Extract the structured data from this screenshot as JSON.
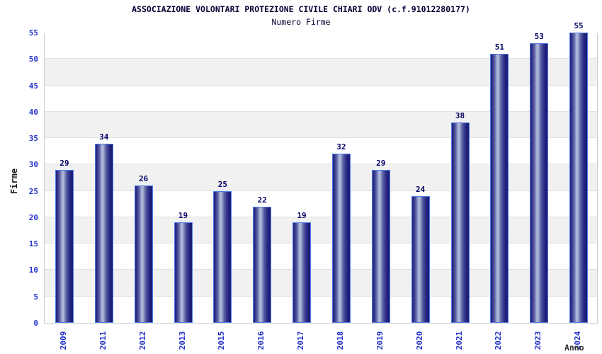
{
  "chart_data": {
    "type": "bar",
    "title": "ASSOCIAZIONE VOLONTARI PROTEZIONE CIVILE CHIARI ODV (c.f.91012280177)",
    "subtitle": "Numero Firme",
    "xlabel": "Anno",
    "ylabel": "Firme",
    "categories": [
      "2009",
      "2011",
      "2012",
      "2013",
      "2015",
      "2016",
      "2017",
      "2018",
      "2019",
      "2020",
      "2021",
      "2022",
      "2023",
      "2024"
    ],
    "values": [
      29,
      34,
      26,
      19,
      25,
      22,
      19,
      32,
      29,
      24,
      38,
      51,
      53,
      55
    ],
    "ylim": [
      0,
      55
    ],
    "ytick_step": 5,
    "grid": "alternating-horizontal-bands",
    "legend": "none"
  },
  "colors": {
    "bar_gradient_dark": "#1b1b72",
    "bar_gradient_highlight": "#b9c1df",
    "bar_border": "#4f7be8",
    "tick_label_blue": "#2333cc",
    "value_label_navy": "#000066",
    "title_navy": "#000033",
    "axis_label_dark": "#1a1a1a",
    "band_gray": "#f1f1f1",
    "plot_border_gray": "#cccccc",
    "background": "#ffffff"
  }
}
